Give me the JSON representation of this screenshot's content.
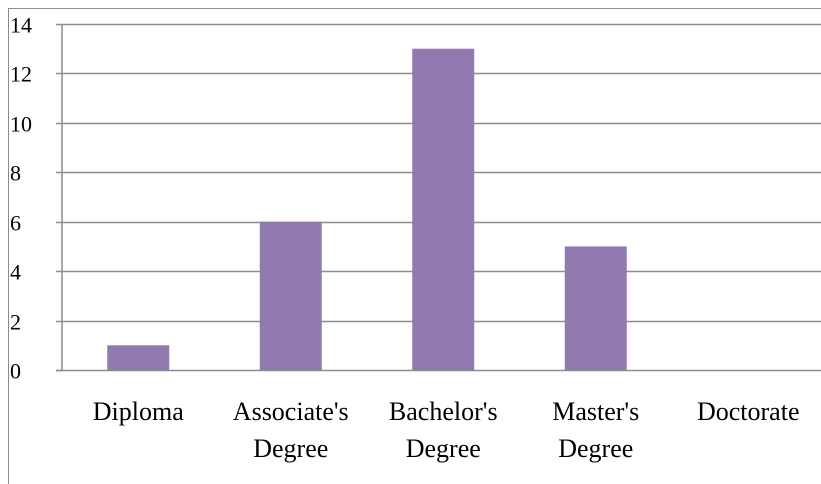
{
  "chart_data": {
    "type": "bar",
    "categories": [
      "Diploma",
      "Associate's Degree",
      "Bachelor's Degree",
      "Master's Degree",
      "Doctorate"
    ],
    "category_label_lines": [
      [
        "Diploma"
      ],
      [
        "Associate's",
        "Degree"
      ],
      [
        "Bachelor's",
        "Degree"
      ],
      [
        "Master's",
        "Degree"
      ],
      [
        "Doctorate"
      ]
    ],
    "values": [
      1,
      6,
      13,
      5,
      0
    ],
    "ylim": [
      0,
      14
    ],
    "yticks": [
      0,
      2,
      4,
      6,
      8,
      10,
      12,
      14
    ],
    "title": "",
    "xlabel": "",
    "ylabel": "",
    "grid": true,
    "legend": "none",
    "colors": {
      "bar": "#917aaf",
      "grid": "#8c8c8c",
      "axis": "#8c8c8c"
    }
  }
}
